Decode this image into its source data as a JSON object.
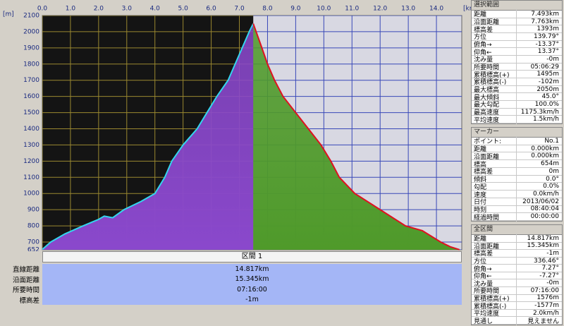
{
  "chart_data": {
    "type": "area",
    "x_unit": "[km]",
    "y_unit": "[m]",
    "series": [
      {
        "color": "#33d6ee",
        "fill": "#8a48cc",
        "x": [
          0,
          0.3,
          0.8,
          1.45,
          2.0,
          2.2,
          2.5,
          2.9,
          3.5,
          4.0,
          4.35,
          4.6,
          5.0,
          5.5,
          5.85,
          6.2,
          6.6,
          6.85,
          7.1,
          7.35,
          7.493
        ],
        "values": [
          654,
          700,
          750,
          800,
          840,
          860,
          850,
          900,
          950,
          1000,
          1100,
          1200,
          1300,
          1400,
          1500,
          1600,
          1700,
          1800,
          1900,
          2000,
          2050
        ]
      },
      {
        "color": "#e01020",
        "fill": "#4f9a2a",
        "x": [
          7.493,
          7.8,
          8.0,
          8.25,
          8.55,
          9.0,
          9.45,
          9.9,
          10.25,
          10.55,
          11.1,
          12.0,
          12.9,
          13.5,
          14.15,
          14.5,
          14.817
        ],
        "values": [
          2050,
          1900,
          1800,
          1700,
          1600,
          1500,
          1400,
          1300,
          1200,
          1100,
          1000,
          900,
          800,
          770,
          700,
          670,
          653
        ]
      }
    ],
    "selection_range": [
      0,
      7.493
    ],
    "xlim": [
      0,
      14.9
    ],
    "xticks": [
      {
        "value": 0,
        "label": "0.0"
      },
      {
        "value": 1,
        "label": "1.0"
      },
      {
        "value": 2,
        "label": "2.0"
      },
      {
        "value": 3,
        "label": "3.0"
      },
      {
        "value": 4,
        "label": "4.0"
      },
      {
        "value": 5,
        "label": "5.0"
      },
      {
        "value": 6,
        "label": "6.0"
      },
      {
        "value": 7,
        "label": "7.0"
      },
      {
        "value": 8,
        "label": "8.0"
      },
      {
        "value": 9,
        "label": "9.0"
      },
      {
        "value": 10,
        "label": "10.0"
      },
      {
        "value": 11,
        "label": "11.0"
      },
      {
        "value": 12,
        "label": "12.0"
      },
      {
        "value": 13,
        "label": "13.0"
      },
      {
        "value": 14,
        "label": "14.0"
      }
    ],
    "ylim": [
      652,
      2100
    ],
    "yticks": [
      652,
      700,
      800,
      900,
      1000,
      1100,
      1200,
      1300,
      1400,
      1500,
      1600,
      1700,
      1800,
      1900,
      2000,
      2100
    ],
    "grid": true
  },
  "section_header": "区間 1",
  "section_rows": [
    [
      "直線距離",
      "14.817km"
    ],
    [
      "沿面距離",
      "15.345km"
    ],
    [
      "所要時間",
      "07:16:00"
    ],
    [
      "標高差",
      "-1m"
    ]
  ],
  "panels": [
    {
      "title": "選択範囲",
      "rows": [
        [
          "距離",
          "7.493km"
        ],
        [
          "沿面距離",
          "7.763km"
        ],
        [
          "標高差",
          "1393m"
        ],
        [
          "方位",
          "139.79°"
        ],
        [
          "俯角→",
          "-13.37°"
        ],
        [
          "仰角←",
          "13.37°"
        ],
        [
          "沈み量",
          "-0m"
        ],
        [
          "所要時間",
          "05:06:29"
        ],
        [
          "累積標高(+)",
          "1495m"
        ],
        [
          "累積標高(-)",
          "-102m"
        ],
        [
          "最大標高",
          "2050m"
        ],
        [
          "最大傾斜",
          "45.0°"
        ],
        [
          "最大勾配",
          "100.0%"
        ],
        [
          "最高速度",
          "1175.3km/h"
        ],
        [
          "平均速度",
          "1.5km/h"
        ]
      ]
    },
    {
      "title": "マーカー",
      "rows": [
        [
          "ポイント:",
          "No.1"
        ],
        [
          "距離",
          "0.000km"
        ],
        [
          "沿面距離",
          "0.000km"
        ],
        [
          "標高",
          "654m"
        ],
        [
          "標高差",
          "0m"
        ],
        [
          "傾斜",
          "0.0°"
        ],
        [
          "勾配",
          "0.0%"
        ],
        [
          "速度",
          "0.0km/h"
        ],
        [
          "日付",
          "2013/06/02"
        ],
        [
          "時刻",
          "08:40:04"
        ],
        [
          "経過時間",
          "00:00:00"
        ]
      ]
    },
    {
      "title": "全区間",
      "rows": [
        [
          "距離",
          "14.817km"
        ],
        [
          "沿面距離",
          "15.345km"
        ],
        [
          "標高差",
          "-1m"
        ],
        [
          "方位",
          "336.46°"
        ],
        [
          "俯角→",
          "7.27°"
        ],
        [
          "仰角←",
          "-7.27°"
        ],
        [
          "沈み量",
          "-0m"
        ],
        [
          "所要時間",
          "07:16:00"
        ],
        [
          "累積標高(+)",
          "1576m"
        ],
        [
          "累積標高(-)",
          "-1577m"
        ],
        [
          "平均速度",
          "2.0km/h"
        ],
        [
          "見通し",
          "見えません"
        ]
      ]
    }
  ]
}
